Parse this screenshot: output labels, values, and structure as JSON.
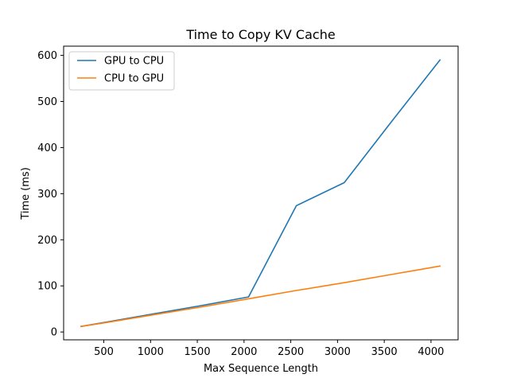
{
  "chart_data": {
    "type": "line",
    "title": "Time to Copy KV Cache",
    "xlabel": "Max Sequence Length",
    "ylabel": "Time (ms)",
    "xlim": [
      70,
      4290
    ],
    "ylim": [
      -17,
      620
    ],
    "xticks": [
      500,
      1000,
      1500,
      2000,
      2500,
      3000,
      3500,
      4000
    ],
    "yticks": [
      0,
      100,
      200,
      300,
      400,
      500,
      600
    ],
    "grid": false,
    "legend_position": "top-left",
    "series": [
      {
        "name": "GPU to CPU",
        "color": "#1f77b4",
        "x": [
          256,
          512,
          1024,
          1536,
          2048,
          2560,
          3072,
          3584,
          4096
        ],
        "y": [
          12,
          21,
          39,
          57,
          76,
          274,
          324,
          458,
          590
        ]
      },
      {
        "name": "CPU to GPU",
        "color": "#ff7f0e",
        "x": [
          256,
          512,
          1024,
          1536,
          2048,
          2560,
          3072,
          3584,
          4096
        ],
        "y": [
          12,
          20,
          37,
          54,
          72,
          90,
          107,
          125,
          143
        ]
      }
    ]
  }
}
